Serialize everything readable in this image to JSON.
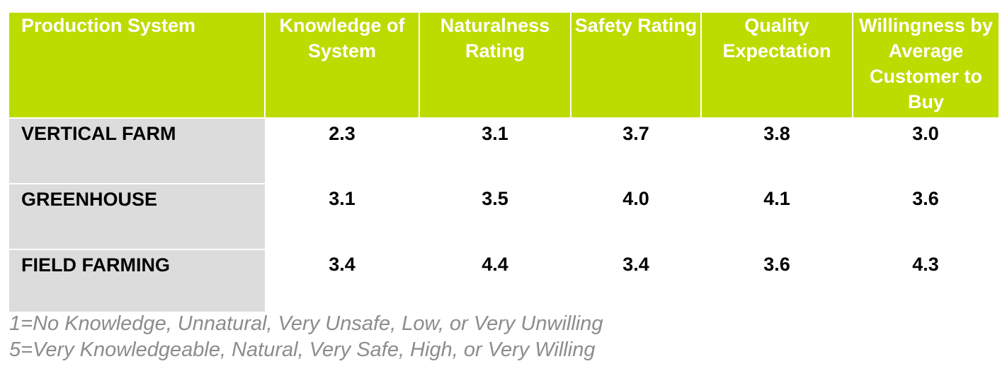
{
  "table": {
    "headers": [
      "Production System",
      "Knowledge of System",
      "Naturalness Rating",
      "Safety Rating",
      "Quality Expectation",
      "Willingness by Average Customer to Buy"
    ],
    "rows": [
      {
        "label": "VERTICAL FARM",
        "values": [
          "2.3",
          "3.1",
          "3.7",
          "3.8",
          "3.0"
        ]
      },
      {
        "label": "GREENHOUSE",
        "values": [
          "3.1",
          "3.5",
          "4.0",
          "4.1",
          "3.6"
        ]
      },
      {
        "label": "FIELD FARMING",
        "values": [
          "3.4",
          "4.4",
          "3.4",
          "3.6",
          "4.3"
        ]
      }
    ]
  },
  "notes": {
    "line1": "1=No Knowledge, Unnatural, Very Unsafe, Low, or Very Unwilling",
    "line2": "5=Very Knowledgeable, Natural, Very Safe, High, or Very Willing"
  },
  "colors": {
    "header_bg": "#bcdc00",
    "label_bg": "#dcdcdc",
    "note_text": "#8c8c8c"
  }
}
